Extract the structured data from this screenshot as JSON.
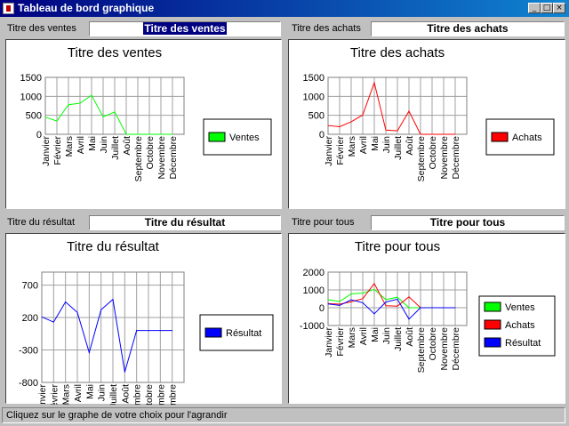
{
  "window": {
    "title": "Tableau de bord graphique",
    "minimize_glyph": "_",
    "maximize_glyph": "□",
    "close_glyph": "×"
  },
  "panels": [
    {
      "label": "Titre des ventes",
      "field_value": "Titre des ventes",
      "selected": true
    },
    {
      "label": "Titre des achats",
      "field_value": "Titre des achats",
      "selected": false
    },
    {
      "label": "Titre du résultat",
      "field_value": "Titre du résultat",
      "selected": false
    },
    {
      "label": "Titre pour tous",
      "field_value": "Titre pour tous",
      "selected": false
    }
  ],
  "status_text": "Cliquez sur le graphe de votre choix pour l'agrandir",
  "colors": {
    "ventes": "#00ff00",
    "achats": "#ff0000",
    "resultat": "#0000ff"
  },
  "chart_data": [
    {
      "type": "line",
      "title": "Titre des ventes",
      "categories": [
        "Janvier",
        "Février",
        "Mars",
        "Avril",
        "Mai",
        "Juin",
        "Juillet",
        "Août",
        "Septembre",
        "Octobre",
        "Novembre",
        "Décembre"
      ],
      "series": [
        {
          "name": "Ventes",
          "color": "#00ff00",
          "values": [
            450,
            350,
            780,
            820,
            1030,
            460,
            590,
            0,
            0,
            0,
            0,
            0
          ]
        }
      ],
      "yticks": [
        0,
        500,
        1000,
        1500
      ],
      "ylim": [
        0,
        1500
      ],
      "grid": true,
      "legend": "right"
    },
    {
      "type": "line",
      "title": "Titre des achats",
      "categories": [
        "Janvier",
        "Février",
        "Mars",
        "Avril",
        "Mai",
        "Juin",
        "Juillet",
        "Août",
        "Septembre",
        "Octobre",
        "Novembre",
        "Décembre"
      ],
      "series": [
        {
          "name": "Achats",
          "color": "#ff0000",
          "values": [
            230,
            200,
            330,
            510,
            1360,
            110,
            90,
            610,
            0,
            0,
            0,
            0
          ]
        }
      ],
      "yticks": [
        0,
        500,
        1000,
        1500
      ],
      "ylim": [
        0,
        1500
      ],
      "grid": true,
      "legend": "right"
    },
    {
      "type": "line",
      "title": "Titre du résultat",
      "categories": [
        "Janvier",
        "Février",
        "Mars",
        "Avril",
        "Mai",
        "Juin",
        "Juillet",
        "Août",
        "Septembre",
        "Octobre",
        "Novembre",
        "Décembre"
      ],
      "series": [
        {
          "name": "Résultat",
          "color": "#0000ff",
          "values": [
            210,
            130,
            440,
            280,
            -340,
            320,
            480,
            -640,
            0,
            0,
            0,
            0
          ]
        }
      ],
      "yticks": [
        700,
        200,
        -300,
        -800
      ],
      "ylim": [
        -800,
        900
      ],
      "grid": true,
      "legend": "right"
    },
    {
      "type": "line",
      "title": "Titre pour tous",
      "categories": [
        "Janvier",
        "Février",
        "Mars",
        "Avril",
        "Mai",
        "Juin",
        "Juillet",
        "Août",
        "Septembre",
        "Octobre",
        "Novembre",
        "Décembre"
      ],
      "series": [
        {
          "name": "Ventes",
          "color": "#00ff00",
          "values": [
            450,
            350,
            780,
            820,
            1030,
            460,
            590,
            0,
            0,
            0,
            0,
            0
          ]
        },
        {
          "name": "Achats",
          "color": "#ff0000",
          "values": [
            230,
            200,
            330,
            510,
            1360,
            110,
            90,
            610,
            0,
            0,
            0,
            0
          ]
        },
        {
          "name": "Résultat",
          "color": "#0000ff",
          "values": [
            210,
            130,
            440,
            280,
            -340,
            320,
            480,
            -640,
            0,
            0,
            0,
            0
          ]
        }
      ],
      "yticks": [
        2000,
        1000,
        0,
        -1000
      ],
      "ylim": [
        -1000,
        2000
      ],
      "grid": true,
      "legend": "right"
    }
  ]
}
